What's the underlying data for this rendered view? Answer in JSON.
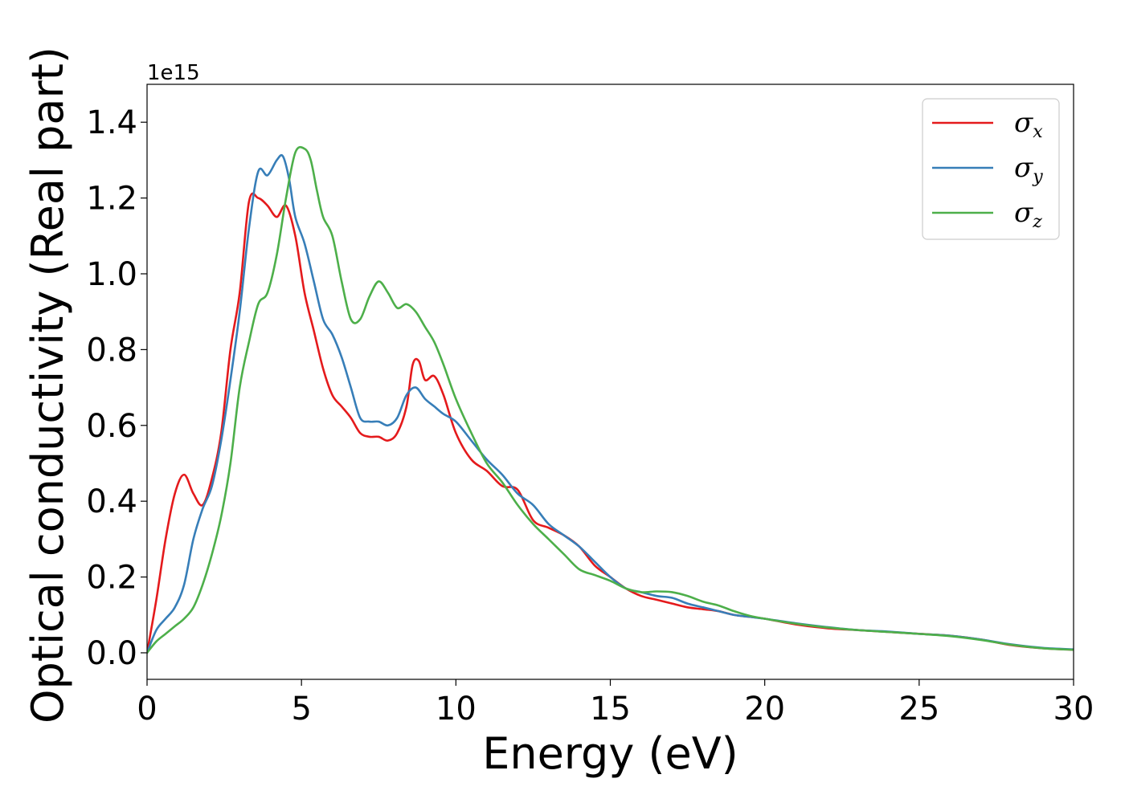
{
  "chart_data": {
    "type": "line",
    "title": "",
    "xlabel": "Energy (eV)",
    "ylabel": "Optical conductivity (Real part)",
    "y_offset_label": "1e15",
    "xlim": [
      0,
      30
    ],
    "ylim": [
      -0.07,
      1.5
    ],
    "xticks": [
      0,
      5,
      10,
      15,
      20,
      25,
      30
    ],
    "yticks": [
      0.0,
      0.2,
      0.4,
      0.6,
      0.8,
      1.0,
      1.2,
      1.4
    ],
    "xtick_labels": [
      "0",
      "5",
      "10",
      "15",
      "20",
      "25",
      "30"
    ],
    "ytick_labels": [
      "0.0",
      "0.2",
      "0.4",
      "0.6",
      "0.8",
      "1.0",
      "1.2",
      "1.4"
    ],
    "grid": false,
    "legend_position": "top-right",
    "series": [
      {
        "name": "σx",
        "symbol": "σ",
        "subscript": "x",
        "color": "#e41a1c",
        "x": [
          0,
          0.3,
          0.6,
          0.9,
          1.2,
          1.5,
          1.8,
          2.1,
          2.4,
          2.7,
          3.0,
          3.3,
          3.6,
          3.9,
          4.2,
          4.5,
          4.8,
          5.1,
          5.4,
          5.7,
          6.0,
          6.3,
          6.6,
          6.9,
          7.2,
          7.5,
          7.8,
          8.1,
          8.4,
          8.6,
          8.8,
          9.0,
          9.3,
          9.6,
          10.0,
          10.5,
          11.0,
          11.5,
          12.0,
          12.5,
          13.0,
          13.5,
          14.0,
          14.5,
          15.0,
          15.5,
          16.0,
          16.5,
          17.0,
          17.5,
          18.0,
          18.5,
          19.0,
          19.5,
          20.0,
          21.0,
          22.0,
          23.0,
          24.0,
          25.0,
          26.0,
          27.0,
          28.0,
          29.0,
          30.0
        ],
        "values": [
          0.0,
          0.14,
          0.3,
          0.42,
          0.47,
          0.42,
          0.39,
          0.46,
          0.58,
          0.8,
          0.95,
          1.19,
          1.2,
          1.18,
          1.15,
          1.18,
          1.1,
          0.95,
          0.85,
          0.75,
          0.68,
          0.65,
          0.62,
          0.58,
          0.57,
          0.57,
          0.56,
          0.58,
          0.65,
          0.76,
          0.77,
          0.72,
          0.73,
          0.68,
          0.58,
          0.51,
          0.48,
          0.44,
          0.43,
          0.35,
          0.33,
          0.31,
          0.28,
          0.23,
          0.2,
          0.17,
          0.15,
          0.14,
          0.13,
          0.12,
          0.115,
          0.11,
          0.1,
          0.095,
          0.09,
          0.075,
          0.065,
          0.06,
          0.055,
          0.05,
          0.045,
          0.035,
          0.02,
          0.012,
          0.008
        ]
      },
      {
        "name": "σy",
        "symbol": "σ",
        "subscript": "y",
        "color": "#377eb8",
        "x": [
          0,
          0.3,
          0.6,
          0.9,
          1.2,
          1.5,
          1.8,
          2.1,
          2.4,
          2.7,
          3.0,
          3.3,
          3.6,
          3.9,
          4.2,
          4.4,
          4.6,
          4.8,
          5.1,
          5.4,
          5.7,
          6.0,
          6.3,
          6.6,
          6.9,
          7.2,
          7.5,
          7.8,
          8.1,
          8.4,
          8.7,
          9.0,
          9.3,
          9.6,
          10.0,
          10.5,
          11.0,
          11.5,
          12.0,
          12.5,
          13.0,
          13.5,
          14.0,
          14.5,
          15.0,
          15.5,
          16.0,
          16.5,
          17.0,
          17.5,
          18.0,
          18.5,
          19.0,
          19.5,
          20.0,
          21.0,
          22.0,
          23.0,
          24.0,
          25.0,
          26.0,
          27.0,
          28.0,
          29.0,
          30.0
        ],
        "values": [
          0.0,
          0.06,
          0.09,
          0.12,
          0.18,
          0.3,
          0.38,
          0.44,
          0.56,
          0.72,
          0.9,
          1.12,
          1.27,
          1.26,
          1.3,
          1.31,
          1.25,
          1.15,
          1.08,
          0.98,
          0.88,
          0.84,
          0.78,
          0.7,
          0.62,
          0.61,
          0.61,
          0.6,
          0.62,
          0.68,
          0.7,
          0.67,
          0.65,
          0.63,
          0.61,
          0.56,
          0.51,
          0.47,
          0.42,
          0.39,
          0.34,
          0.31,
          0.28,
          0.24,
          0.2,
          0.17,
          0.16,
          0.15,
          0.145,
          0.13,
          0.12,
          0.11,
          0.1,
          0.095,
          0.09,
          0.078,
          0.068,
          0.06,
          0.056,
          0.05,
          0.045,
          0.035,
          0.022,
          0.013,
          0.009
        ]
      },
      {
        "name": "σz",
        "symbol": "σ",
        "subscript": "z",
        "color": "#4daf4a",
        "x": [
          0,
          0.3,
          0.6,
          0.9,
          1.2,
          1.5,
          1.8,
          2.1,
          2.4,
          2.7,
          3.0,
          3.3,
          3.6,
          3.9,
          4.2,
          4.5,
          4.8,
          5.1,
          5.3,
          5.5,
          5.7,
          6.0,
          6.3,
          6.6,
          6.9,
          7.2,
          7.5,
          7.8,
          8.1,
          8.4,
          8.7,
          9.0,
          9.3,
          9.6,
          10.0,
          10.5,
          11.0,
          11.5,
          12.0,
          12.5,
          13.0,
          13.5,
          14.0,
          14.5,
          15.0,
          15.5,
          16.0,
          16.5,
          17.0,
          17.5,
          18.0,
          18.5,
          19.0,
          19.5,
          20.0,
          21.0,
          22.0,
          23.0,
          24.0,
          25.0,
          26.0,
          27.0,
          28.0,
          29.0,
          30.0
        ],
        "values": [
          0.0,
          0.03,
          0.05,
          0.07,
          0.09,
          0.12,
          0.18,
          0.26,
          0.36,
          0.5,
          0.7,
          0.82,
          0.92,
          0.95,
          1.05,
          1.2,
          1.32,
          1.33,
          1.3,
          1.22,
          1.15,
          1.1,
          0.98,
          0.88,
          0.88,
          0.94,
          0.98,
          0.95,
          0.91,
          0.92,
          0.9,
          0.86,
          0.82,
          0.76,
          0.67,
          0.58,
          0.5,
          0.45,
          0.39,
          0.34,
          0.3,
          0.26,
          0.22,
          0.205,
          0.19,
          0.17,
          0.16,
          0.162,
          0.16,
          0.15,
          0.135,
          0.125,
          0.11,
          0.098,
          0.09,
          0.077,
          0.067,
          0.06,
          0.055,
          0.05,
          0.044,
          0.034,
          0.021,
          0.012,
          0.008
        ]
      }
    ]
  }
}
